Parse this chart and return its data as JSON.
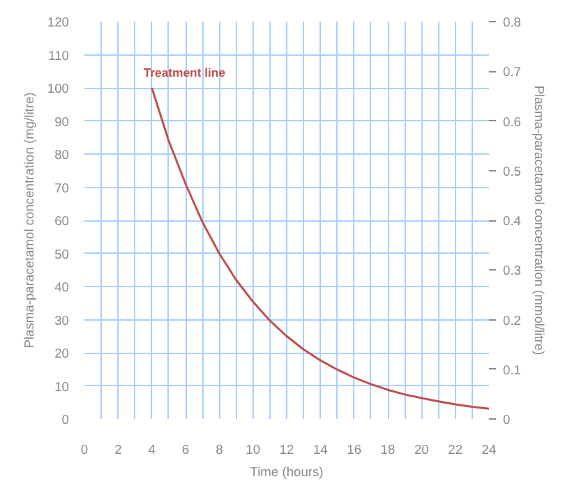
{
  "chart_data": {
    "type": "line",
    "xlabel": "Time (hours)",
    "ylabel": "Plasma-paracetamol concentration (mg/litre)",
    "y2label": "Plasma-paracetamol concentration (mmol/litre)",
    "x": [
      4,
      5,
      6,
      7,
      8,
      9,
      10,
      11,
      12,
      13,
      14,
      15,
      16,
      17,
      18,
      19,
      20,
      21,
      22,
      23,
      24
    ],
    "series": [
      {
        "name": "Treatment line",
        "color": "#c0504d",
        "values": [
          100,
          84,
          71,
          59.5,
          50,
          42,
          35.4,
          29.7,
          25,
          21,
          17.7,
          14.9,
          12.5,
          10.5,
          8.8,
          7.4,
          6.3,
          5.3,
          4.4,
          3.7,
          3.1
        ]
      }
    ],
    "xlim": [
      0,
      24
    ],
    "xticks": [
      0,
      {
        "value": 1,
        "label": null
      },
      2,
      {
        "value": 3,
        "label": null
      },
      4,
      {
        "value": 5,
        "label": null
      },
      6,
      {
        "value": 7,
        "label": null
      },
      8,
      {
        "value": 9,
        "label": null
      },
      10,
      {
        "value": 11,
        "label": null
      },
      12,
      {
        "value": 13,
        "label": null
      },
      14,
      {
        "value": 15,
        "label": null
      },
      16,
      {
        "value": 17,
        "label": null
      },
      18,
      {
        "value": 19,
        "label": null
      },
      20,
      {
        "value": 21,
        "label": null
      },
      22,
      {
        "value": 23,
        "label": null
      },
      24
    ],
    "ylim": [
      0,
      120
    ],
    "yticks": [
      0,
      10,
      20,
      30,
      40,
      50,
      60,
      70,
      80,
      90,
      100,
      110,
      120
    ],
    "y2lim": [
      0,
      0.8
    ],
    "y2ticks": [
      0,
      0.1,
      0.2,
      0.3,
      0.4,
      0.5,
      0.6,
      0.7,
      0.8
    ],
    "grid": true,
    "legend": false,
    "marker": "none",
    "line_style": "solid"
  }
}
